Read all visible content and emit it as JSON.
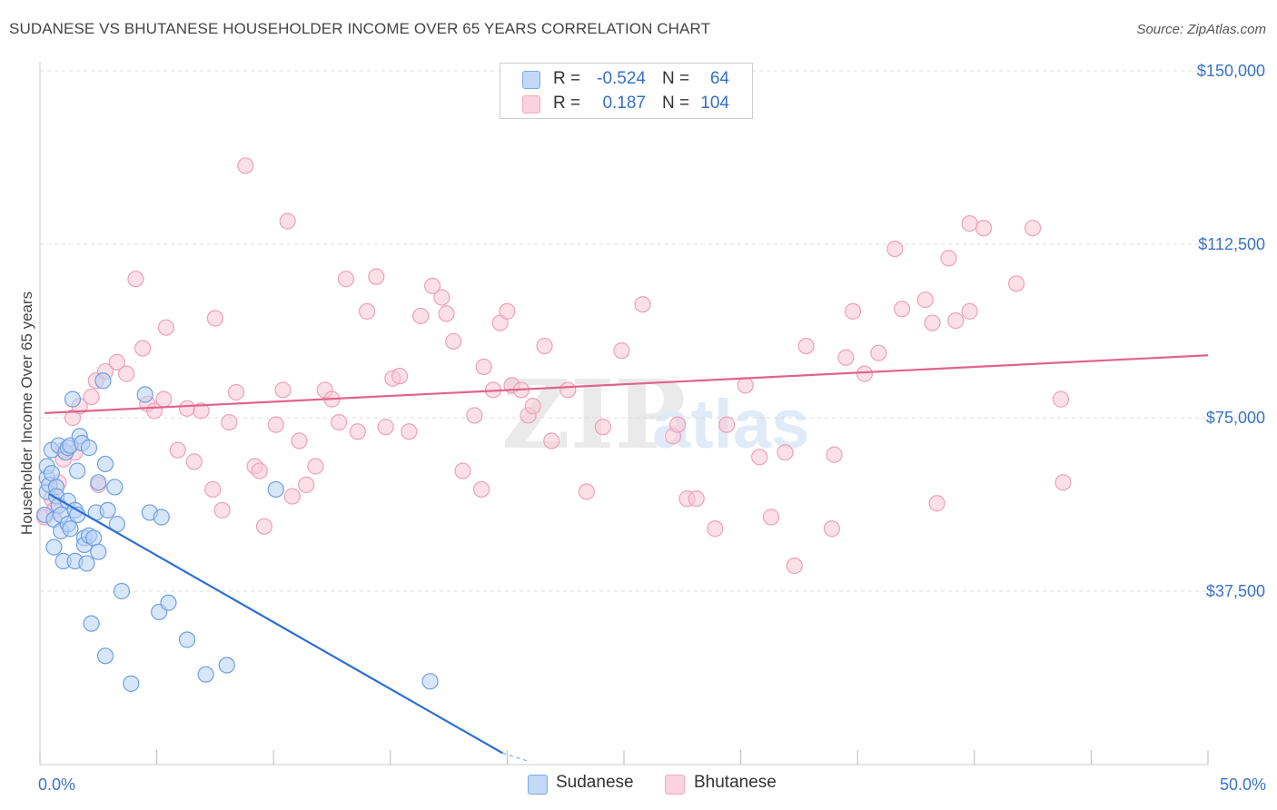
{
  "title": "SUDANESE VS BHUTANESE HOUSEHOLDER INCOME OVER 65 YEARS CORRELATION CHART",
  "source": "Source: ZipAtlas.com",
  "legend": {
    "rows": [
      {
        "r_label": "R =",
        "r_value": "-0.524",
        "n_label": "N =",
        "n_value": "64",
        "color": "#7aaae8"
      },
      {
        "r_label": "R =",
        "r_value": "0.187",
        "n_label": "N =",
        "n_value": "104",
        "color": "#f5a8c0"
      }
    ]
  },
  "chart_data": {
    "type": "scatter",
    "ylabel": "Householder Income Over 65 years",
    "xlim": [
      0,
      50
    ],
    "ylim": [
      0,
      150000
    ],
    "y_ticks": [
      37500,
      75000,
      112500,
      150000
    ],
    "y_tick_labels": [
      "$37,500",
      "$75,000",
      "$112,500",
      "$150,000"
    ],
    "x_tick_labels": [
      "0.0%",
      "50.0%"
    ],
    "grid": true,
    "legend_position": "top-center",
    "colors": {
      "blue_fill": "#b8d2f5",
      "blue_stroke": "#6f9fe0",
      "blue_line": "#2d6fd4",
      "pink_fill": "#f9c6d6",
      "pink_stroke": "#eea0ba",
      "pink_line": "#e0638d",
      "axis_text": "#3a72c8"
    },
    "series": [
      {
        "name": "Sudanese",
        "trend": {
          "x": [
            0.4,
            19.8
          ],
          "y": [
            58500,
            2500
          ],
          "dashed_to": [
            21.0,
            0
          ]
        },
        "points": [
          [
            0.2,
            54000
          ],
          [
            0.3,
            59000
          ],
          [
            0.3,
            62000
          ],
          [
            0.3,
            64500
          ],
          [
            0.4,
            60500
          ],
          [
            0.5,
            63000
          ],
          [
            0.5,
            68000
          ],
          [
            0.6,
            53000
          ],
          [
            0.6,
            47000
          ],
          [
            0.7,
            60000
          ],
          [
            0.7,
            58000
          ],
          [
            0.8,
            69000
          ],
          [
            0.8,
            56000
          ],
          [
            0.9,
            54000
          ],
          [
            0.9,
            50500
          ],
          [
            1.0,
            44000
          ],
          [
            1.1,
            67500
          ],
          [
            1.2,
            68500
          ],
          [
            1.2,
            57000
          ],
          [
            1.2,
            52000
          ],
          [
            1.3,
            51000
          ],
          [
            1.3,
            69000
          ],
          [
            1.4,
            79000
          ],
          [
            1.5,
            55000
          ],
          [
            1.5,
            44000
          ],
          [
            1.6,
            54000
          ],
          [
            1.6,
            63500
          ],
          [
            1.7,
            71000
          ],
          [
            1.8,
            69500
          ],
          [
            1.9,
            49000
          ],
          [
            1.9,
            47500
          ],
          [
            2.0,
            43500
          ],
          [
            2.1,
            68500
          ],
          [
            2.1,
            49500
          ],
          [
            2.2,
            30500
          ],
          [
            2.3,
            49000
          ],
          [
            2.4,
            54500
          ],
          [
            2.5,
            46000
          ],
          [
            2.5,
            61000
          ],
          [
            2.7,
            83000
          ],
          [
            2.8,
            23500
          ],
          [
            2.8,
            65000
          ],
          [
            2.9,
            55000
          ],
          [
            3.2,
            60000
          ],
          [
            3.3,
            52000
          ],
          [
            3.5,
            37500
          ],
          [
            3.9,
            17500
          ],
          [
            4.5,
            80000
          ],
          [
            4.7,
            54500
          ],
          [
            5.1,
            33000
          ],
          [
            5.2,
            53500
          ],
          [
            5.5,
            35000
          ],
          [
            6.3,
            27000
          ],
          [
            7.1,
            19500
          ],
          [
            8.0,
            21500
          ],
          [
            10.1,
            59500
          ],
          [
            16.7,
            18000
          ]
        ]
      },
      {
        "name": "Bhutanese",
        "trend": {
          "x": [
            0.2,
            50
          ],
          "y": [
            76000,
            88500
          ]
        },
        "points": [
          [
            0.2,
            53500
          ],
          [
            0.5,
            57500
          ],
          [
            0.6,
            55000
          ],
          [
            0.8,
            61000
          ],
          [
            1.0,
            66000
          ],
          [
            1.0,
            68000
          ],
          [
            1.4,
            75000
          ],
          [
            1.5,
            67500
          ],
          [
            1.7,
            77500
          ],
          [
            2.2,
            79500
          ],
          [
            2.4,
            83000
          ],
          [
            2.5,
            60500
          ],
          [
            2.8,
            85000
          ],
          [
            3.3,
            87000
          ],
          [
            3.7,
            84500
          ],
          [
            4.1,
            105000
          ],
          [
            4.4,
            90000
          ],
          [
            4.6,
            78000
          ],
          [
            4.9,
            76500
          ],
          [
            5.3,
            79000
          ],
          [
            5.4,
            94500
          ],
          [
            5.9,
            68000
          ],
          [
            6.3,
            77000
          ],
          [
            6.6,
            65500
          ],
          [
            6.9,
            76500
          ],
          [
            7.4,
            59500
          ],
          [
            7.5,
            96500
          ],
          [
            7.8,
            55000
          ],
          [
            8.1,
            74000
          ],
          [
            8.4,
            80500
          ],
          [
            8.8,
            129500
          ],
          [
            9.2,
            64500
          ],
          [
            9.4,
            63500
          ],
          [
            9.6,
            51500
          ],
          [
            10.1,
            73500
          ],
          [
            10.4,
            81000
          ],
          [
            10.6,
            117500
          ],
          [
            10.8,
            58000
          ],
          [
            11.1,
            70000
          ],
          [
            11.4,
            60500
          ],
          [
            11.8,
            64500
          ],
          [
            12.2,
            81000
          ],
          [
            12.5,
            79000
          ],
          [
            12.8,
            74000
          ],
          [
            13.1,
            105000
          ],
          [
            13.6,
            72000
          ],
          [
            14.0,
            98000
          ],
          [
            14.4,
            105500
          ],
          [
            14.8,
            73000
          ],
          [
            15.1,
            83500
          ],
          [
            15.4,
            84000
          ],
          [
            15.8,
            72000
          ],
          [
            16.3,
            97000
          ],
          [
            16.8,
            103500
          ],
          [
            17.2,
            101000
          ],
          [
            17.4,
            97500
          ],
          [
            17.7,
            91500
          ],
          [
            18.1,
            63500
          ],
          [
            18.6,
            75500
          ],
          [
            18.9,
            59500
          ],
          [
            19.0,
            86000
          ],
          [
            19.4,
            81000
          ],
          [
            19.7,
            95500
          ],
          [
            20.0,
            98000
          ],
          [
            20.2,
            82000
          ],
          [
            20.6,
            81000
          ],
          [
            20.9,
            75500
          ],
          [
            21.1,
            77500
          ],
          [
            21.6,
            90500
          ],
          [
            21.9,
            70000
          ],
          [
            22.6,
            81000
          ],
          [
            23.4,
            59000
          ],
          [
            24.1,
            73000
          ],
          [
            24.9,
            89500
          ],
          [
            25.8,
            99500
          ],
          [
            27.1,
            71000
          ],
          [
            27.3,
            73500
          ],
          [
            27.7,
            57500
          ],
          [
            28.1,
            57500
          ],
          [
            28.9,
            51000
          ],
          [
            29.4,
            73500
          ],
          [
            30.2,
            82000
          ],
          [
            30.8,
            66500
          ],
          [
            31.3,
            53500
          ],
          [
            31.9,
            67500
          ],
          [
            32.3,
            43000
          ],
          [
            32.8,
            90500
          ],
          [
            33.9,
            51000
          ],
          [
            34.0,
            67000
          ],
          [
            34.5,
            88000
          ],
          [
            34.8,
            98000
          ],
          [
            35.3,
            84500
          ],
          [
            35.9,
            89000
          ],
          [
            36.6,
            111500
          ],
          [
            36.9,
            98500
          ],
          [
            37.9,
            100500
          ],
          [
            38.2,
            95500
          ],
          [
            38.4,
            56500
          ],
          [
            38.9,
            109500
          ],
          [
            39.2,
            96000
          ],
          [
            39.8,
            98000
          ],
          [
            39.8,
            117000
          ],
          [
            40.4,
            116000
          ],
          [
            41.8,
            104000
          ],
          [
            42.5,
            116000
          ],
          [
            43.7,
            79000
          ],
          [
            43.8,
            61000
          ]
        ]
      }
    ]
  },
  "bottom_legend": [
    "Sudanese",
    "Bhutanese"
  ]
}
